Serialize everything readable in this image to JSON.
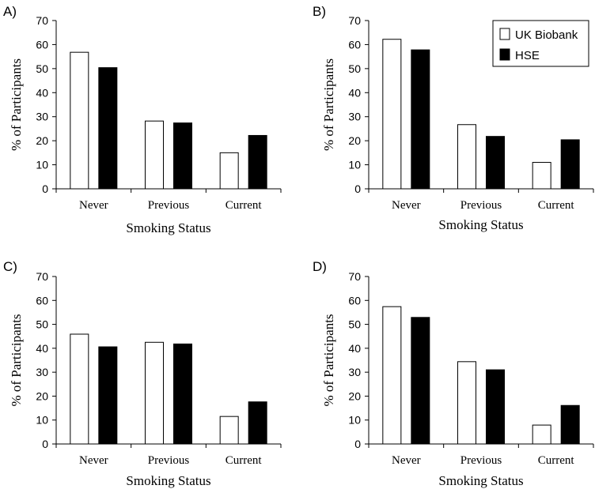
{
  "legend": {
    "series": [
      {
        "name": "UK Biobank",
        "color": "#ffffff"
      },
      {
        "name": "HSE",
        "color": "#000000"
      }
    ]
  },
  "chart_data": [
    {
      "panel": "A)",
      "type": "bar",
      "categories": [
        "Never",
        "Previous",
        "Current"
      ],
      "series": [
        {
          "name": "UK Biobank",
          "values": [
            56.8,
            28.2,
            15.0
          ]
        },
        {
          "name": "HSE",
          "values": [
            50.4,
            27.4,
            22.2
          ]
        }
      ],
      "xlabel": "Smoking Status",
      "ylabel": "% of Participants",
      "ylim": [
        0,
        70
      ],
      "yticks": [
        0,
        10,
        20,
        30,
        40,
        50,
        60,
        70
      ]
    },
    {
      "panel": "B)",
      "type": "bar",
      "categories": [
        "Never",
        "Previous",
        "Current"
      ],
      "series": [
        {
          "name": "UK Biobank",
          "values": [
            62.2,
            26.7,
            11.0
          ]
        },
        {
          "name": "HSE",
          "values": [
            57.8,
            21.8,
            20.4
          ]
        }
      ],
      "xlabel": "Smoking Status",
      "ylabel": "% of Participants",
      "ylim": [
        0,
        70
      ],
      "yticks": [
        0,
        10,
        20,
        30,
        40,
        50,
        60,
        70
      ],
      "legend": "top-right"
    },
    {
      "panel": "C)",
      "type": "bar",
      "categories": [
        "Never",
        "Previous",
        "Current"
      ],
      "series": [
        {
          "name": "UK Biobank",
          "values": [
            45.9,
            42.5,
            11.5
          ]
        },
        {
          "name": "HSE",
          "values": [
            40.6,
            41.8,
            17.6
          ]
        }
      ],
      "xlabel": "Smoking Status",
      "ylabel": "% of Participants",
      "ylim": [
        0,
        70
      ],
      "yticks": [
        0,
        10,
        20,
        30,
        40,
        50,
        60,
        70
      ]
    },
    {
      "panel": "D)",
      "type": "bar",
      "categories": [
        "Never",
        "Previous",
        "Current"
      ],
      "series": [
        {
          "name": "UK Biobank",
          "values": [
            57.4,
            34.4,
            7.9
          ]
        },
        {
          "name": "HSE",
          "values": [
            52.9,
            31.0,
            16.1
          ]
        }
      ],
      "xlabel": "Smoking Status",
      "ylabel": "% of Participants",
      "ylim": [
        0,
        70
      ],
      "yticks": [
        0,
        10,
        20,
        30,
        40,
        50,
        60,
        70
      ]
    }
  ]
}
